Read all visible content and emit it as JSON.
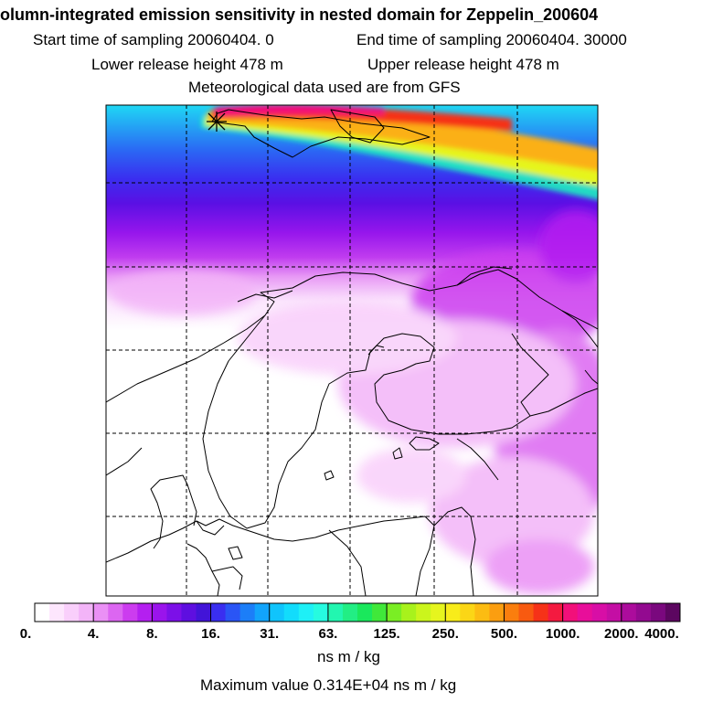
{
  "title": "olumn-integrated emission sensitivity in nested domain for Zeppelin_200604",
  "subtitle": {
    "start": "Start time of sampling 20060404.     0",
    "end": "End time of sampling 20060404. 30000",
    "lower": "Lower release height  478 m",
    "upper": "Upper release height  478 m",
    "met": "Meteorological data used are from GFS"
  },
  "colorbar": {
    "labels": [
      "0.",
      "4.",
      "8.",
      "16.",
      "31.",
      "63.",
      "125.",
      "250.",
      "500.",
      "1000.",
      "2000.",
      "4000."
    ],
    "colors": [
      "#ffffff",
      "#fde6fd",
      "#f9cffb",
      "#f3b4f8",
      "#ea90f5",
      "#dc66f1",
      "#cc3cef",
      "#b41ff0",
      "#9a14ec",
      "#7c10e8",
      "#5e0fe0",
      "#4214d8",
      "#3a2ef0",
      "#2a55f5",
      "#1c7ef8",
      "#12a4fb",
      "#10c4fc",
      "#12dcfc",
      "#1ef0f6",
      "#26fbe0",
      "#22f6b0",
      "#22ee84",
      "#1ae85c",
      "#40e83a",
      "#7aee24",
      "#a8f21c",
      "#cbf51c",
      "#e6f51e",
      "#f8ec1a",
      "#fbd616",
      "#fcbc12",
      "#fb9e10",
      "#fa7e0e",
      "#f85a10",
      "#f63218",
      "#f41a40",
      "#f2107a",
      "#e80e9a",
      "#d80ea6",
      "#c40ea4",
      "#ac0c9c",
      "#930a90",
      "#7a087e",
      "#5c0660"
    ]
  },
  "units": "ns m / kg",
  "max_value_text": "Maximum value  0.314E+04 ns m / kg",
  "colors": {
    "frame": "#000000",
    "coastline": "#000000",
    "grid": "#000000"
  }
}
